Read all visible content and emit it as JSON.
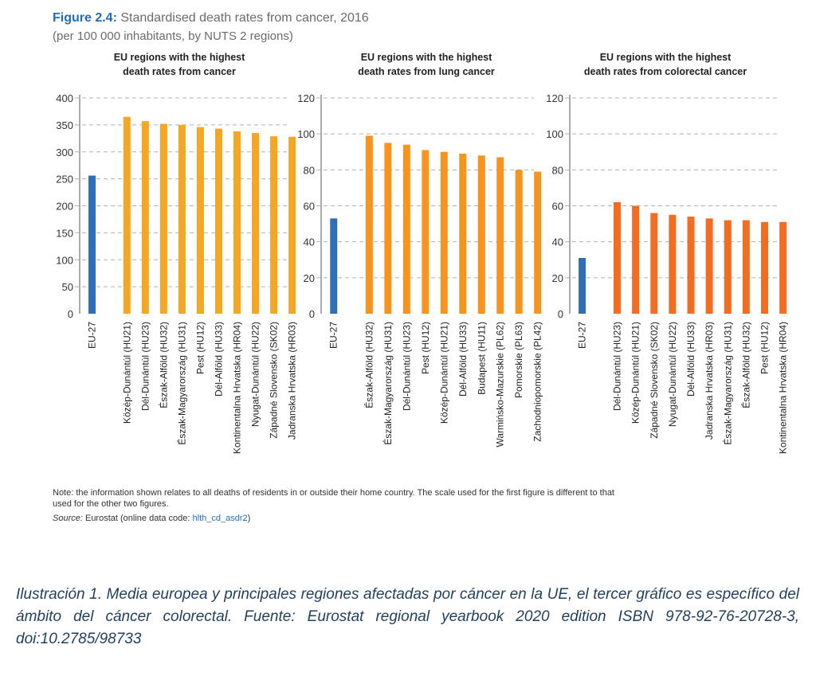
{
  "figure": {
    "label": "Figure 2.4:",
    "title": "Standardised death rates from cancer, 2016",
    "subtitle": "(per 100 000 inhabitants, by NUTS 2 regions)"
  },
  "chart_data": [
    {
      "type": "bar",
      "title": "EU regions with the highest death rates from cancer",
      "ylim": [
        0,
        400
      ],
      "yticks": [
        0,
        50,
        100,
        150,
        200,
        250,
        300,
        350,
        400
      ],
      "categories": [
        "EU-27",
        "Közép-Dunántúl (HU21)",
        "Dél-Dunántúl (HU23)",
        "Észak-Alföld (HU32)",
        "Észak-Magyarország (HU31)",
        "Pest (HU12)",
        "Dél-Alföld (HU33)",
        "Kontinentalna Hrvatska (HR04)",
        "Nyugat-Dunántúl (HU22)",
        "Západné Slovensko (SK02)",
        "Jadranska Hrvatska (HR03)"
      ],
      "values": [
        256,
        365,
        357,
        352,
        350,
        346,
        343,
        338,
        335,
        329,
        328
      ],
      "grid": true
    },
    {
      "type": "bar",
      "title": "EU regions with the highest death rates from lung cancer",
      "ylim": [
        0,
        120
      ],
      "yticks": [
        0,
        20,
        40,
        60,
        80,
        100,
        120
      ],
      "categories": [
        "EU-27",
        "Észak-Alföld (HU32)",
        "Észak-Magyarország (HU31)",
        "Dél-Dunántúl (HU23)",
        "Pest (HU12)",
        "Közép-Dunántúl (HU21)",
        "Dél-Alföld (HU33)",
        "Budapest (HU11)",
        "Warmińsko-Mazurskie (PL62)",
        "Pomorskie (PL63)",
        "Zachodniopomorskie (PL42)"
      ],
      "values": [
        53,
        99,
        95,
        94,
        91,
        90,
        89,
        88,
        87,
        80,
        79
      ],
      "grid": true
    },
    {
      "type": "bar",
      "title": "EU regions with the highest death rates from colorectal cancer",
      "ylim": [
        0,
        120
      ],
      "yticks": [
        0,
        20,
        40,
        60,
        80,
        100,
        120
      ],
      "categories": [
        "EU-27",
        "Dél-Dunántúl (HU23)",
        "Közép-Dunántúl (HU21)",
        "Západné Slovensko (SK02)",
        "Nyugat-Dunántúl (HU22)",
        "Dél-Alföld (HU33)",
        "Jadranska Hrvatska (HR03)",
        "Észak-Magyarország (HU31)",
        "Észak-Alföld (HU32)",
        "Pest (HU12)",
        "Kontinentalna Hrvatska (HR04)"
      ],
      "values": [
        31,
        62,
        60,
        56,
        55,
        54,
        53,
        52,
        52,
        51,
        51
      ],
      "grid": true
    }
  ],
  "colors": {
    "eu_bar": "#2f6fb6",
    "cancer_bar": "#f5a623",
    "lung_bar": "#f7941d",
    "colorectal_bar": "#f26d21",
    "grid": "#b0b0b0",
    "title_accent": "#1f6fb5"
  },
  "note": "Note: the information shown relates to all deaths of residents in or outside their home country. The scale used for the first figure is different to that used for the other two figures.",
  "source": {
    "label": "Source:",
    "text": " Eurostat (online data code: ",
    "code": "hlth_cd_asdr2",
    "close": ")"
  },
  "caption": "Ilustración 1. Media europea y principales regiones afectadas por cáncer en la UE, el tercer gráfico es específico del ámbito del cáncer colorectal. Fuente: Eurostat regional yearbook 2020 edition ISBN 978-92-76-20728-3, doi:10.2785/98733"
}
